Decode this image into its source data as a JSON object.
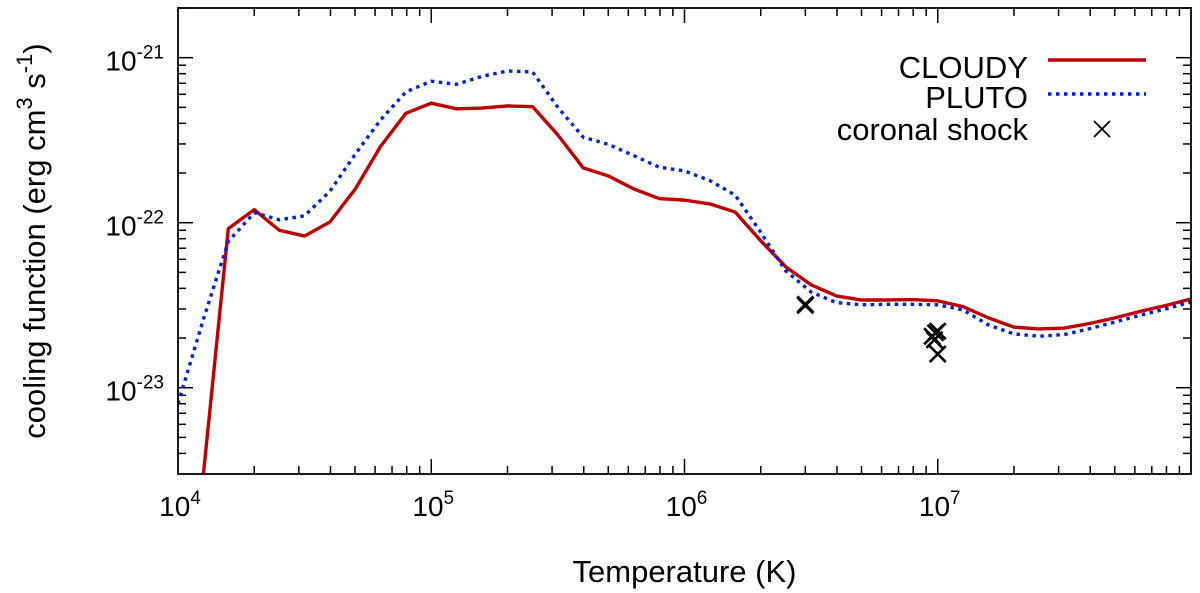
{
  "chart_data": {
    "type": "line",
    "xscale": "log",
    "yscale": "log",
    "xlabel": "Temperature (K)",
    "ylabel": "cooling function (erg cm^3 s^-1)",
    "ylabel_parts": {
      "main": "cooling function (erg cm",
      "cm_exp": "3",
      "s": " s",
      "s_exp": "-1",
      "close": ")"
    },
    "xlim": [
      10000,
      100000000
    ],
    "ylim": [
      3e-24,
      2e-21
    ],
    "xticks": [
      {
        "value": 10000,
        "base": "10",
        "exp": "4"
      },
      {
        "value": 100000,
        "base": "10",
        "exp": "5"
      },
      {
        "value": 1000000,
        "base": "10",
        "exp": "6"
      },
      {
        "value": 10000000,
        "base": "10",
        "exp": "7"
      }
    ],
    "yticks": [
      {
        "value": 1e-23,
        "base": "10",
        "exp": "-23"
      },
      {
        "value": 1e-22,
        "base": "10",
        "exp": "-22"
      },
      {
        "value": 1e-21,
        "base": "10",
        "exp": "-21"
      }
    ],
    "legend_position": "top-right",
    "series": [
      {
        "name": "CLOUDY",
        "style": "solid",
        "color": "#c00000",
        "x": [
          12600,
          15800,
          20000,
          25100,
          31600,
          39800,
          50100,
          63100,
          79400,
          100000,
          125900,
          158500,
          199500,
          251200,
          316200,
          398100,
          501200,
          631000,
          794300,
          1000000,
          1259000,
          1585000,
          1995000,
          2512000,
          3162000,
          3981000,
          5012000,
          6310000,
          7943000,
          10000000,
          12590000,
          15850000,
          19950000,
          25120000,
          31620000,
          39810000,
          50120000,
          63100000,
          79430000,
          100000000
        ],
        "y": [
          3e-24,
          9.2e-23,
          1.2e-22,
          9e-23,
          8.3e-23,
          1.01e-22,
          1.6e-22,
          2.9e-22,
          4.6e-22,
          5.3e-22,
          4.9e-22,
          4.95e-22,
          5.1e-22,
          5.05e-22,
          3.4e-22,
          2.15e-22,
          1.92e-22,
          1.6e-22,
          1.4e-22,
          1.37e-22,
          1.3e-22,
          1.16e-22,
          7.8e-23,
          5.4e-23,
          4.2e-23,
          3.6e-23,
          3.4e-23,
          3.4e-23,
          3.42e-23,
          3.36e-23,
          3.1e-23,
          2.65e-23,
          2.33e-23,
          2.27e-23,
          2.3e-23,
          2.45e-23,
          2.65e-23,
          2.9e-23,
          3.15e-23,
          3.45e-23
        ]
      },
      {
        "name": "PLUTO",
        "style": "dotted",
        "color": "#0022dd",
        "x": [
          10000,
          12600,
          15800,
          20000,
          25100,
          31600,
          39800,
          50100,
          63100,
          79400,
          100000,
          125900,
          158500,
          199500,
          251200,
          316200,
          398100,
          501200,
          631000,
          794300,
          1000000,
          1259000,
          1585000,
          1995000,
          2512000,
          3162000,
          3981000,
          5012000,
          6310000,
          7943000,
          10000000,
          12590000,
          15850000,
          19950000,
          25120000,
          31620000,
          39810000,
          50120000,
          63100000,
          79430000,
          100000000
        ],
        "y": [
          8e-24,
          2.6e-23,
          7.7e-23,
          1.15e-22,
          1.04e-22,
          1.1e-22,
          1.55e-22,
          2.6e-22,
          4.2e-22,
          6.2e-22,
          7.2e-22,
          6.9e-22,
          7.7e-22,
          8.3e-22,
          8.2e-22,
          5e-22,
          3.3e-22,
          2.98e-22,
          2.55e-22,
          2.17e-22,
          2.06e-22,
          1.8e-22,
          1.47e-22,
          8.8e-23,
          5.1e-23,
          3.8e-23,
          3.28e-23,
          3.18e-23,
          3.2e-23,
          3.2e-23,
          3.18e-23,
          2.96e-23,
          2.4e-23,
          2.12e-23,
          2.05e-23,
          2.1e-23,
          2.28e-23,
          2.5e-23,
          2.75e-23,
          3e-23,
          3.3e-23
        ]
      },
      {
        "name": "coronal shock",
        "style": "markers",
        "marker": "x",
        "color": "#000000",
        "x": [
          3000000,
          3000000,
          9500000,
          9800000,
          10000000,
          9700000,
          10000000
        ],
        "y": [
          3.2e-23,
          3.15e-23,
          2.05e-23,
          2.15e-23,
          2.2e-23,
          1.95e-23,
          1.6e-23
        ]
      }
    ]
  }
}
